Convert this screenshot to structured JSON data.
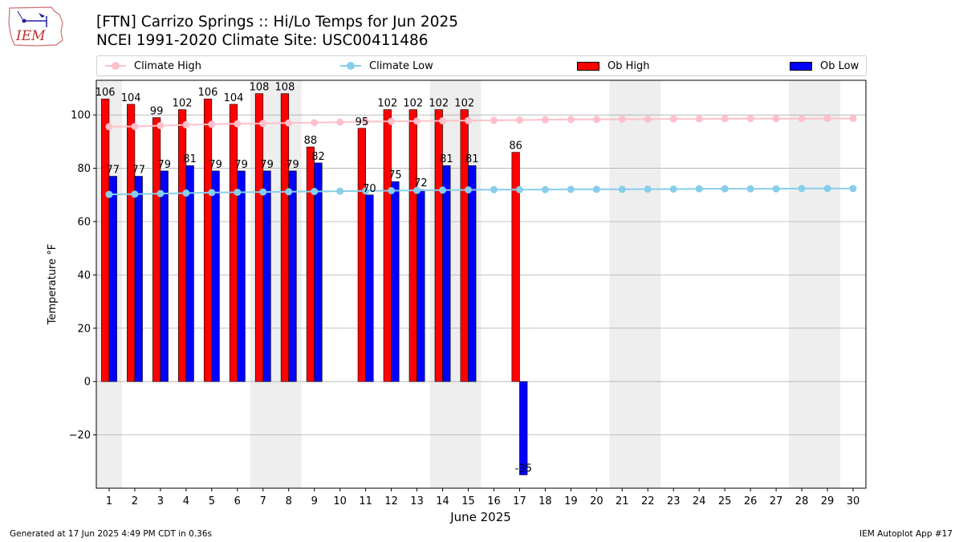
{
  "header": {
    "logo_text": "IEM",
    "title_line1": "[FTN] Carrizo Springs :: Hi/Lo Temps for Jun 2025",
    "title_line2": "NCEI 1991-2020 Climate Site: USC00411486"
  },
  "legend": {
    "items": [
      {
        "label": "Climate High",
        "kind": "line",
        "color": "#ffc0cb"
      },
      {
        "label": "Climate Low",
        "kind": "line",
        "color": "#87ceeb"
      },
      {
        "label": "Ob High",
        "kind": "patch",
        "color": "#ff0000"
      },
      {
        "label": "Ob Low",
        "kind": "patch",
        "color": "#0000ff"
      }
    ]
  },
  "footer": {
    "left": "Generated at 17 Jun 2025 4:49 PM CDT in 0.36s",
    "right": "IEM Autoplot App #17"
  },
  "chart_data": {
    "type": "bar",
    "xlabel": "June 2025",
    "ylabel": "Temperature °F",
    "x": [
      1,
      2,
      3,
      4,
      5,
      6,
      7,
      8,
      9,
      10,
      11,
      12,
      13,
      14,
      15,
      16,
      17,
      18,
      19,
      20,
      21,
      22,
      23,
      24,
      25,
      26,
      27,
      28,
      29,
      30
    ],
    "xlim": [
      0.5,
      30.5
    ],
    "ylim": [
      -40,
      113
    ],
    "yticks": [
      -20,
      0,
      20,
      40,
      60,
      80,
      100
    ],
    "grid": "horizontal",
    "legend_position": "top",
    "weekend_shading_days": [
      1,
      7,
      8,
      14,
      15,
      21,
      22,
      28,
      29
    ],
    "shade_color": "#eeeeee",
    "series": [
      {
        "name": "Ob High",
        "kind": "bar",
        "color": "#ff0000",
        "values": [
          106,
          104,
          99,
          102,
          106,
          104,
          108,
          108,
          88,
          null,
          95,
          102,
          102,
          102,
          102,
          null,
          86,
          null,
          null,
          null,
          null,
          null,
          null,
          null,
          null,
          null,
          null,
          null,
          null,
          null
        ],
        "labels": [
          "106",
          "104",
          "99",
          "102",
          "106",
          "104",
          "108",
          "108",
          "88",
          "",
          "95",
          "102",
          "102",
          "102",
          "102",
          "",
          "86",
          "",
          "",
          "",
          "",
          "",
          "",
          "",
          "",
          "",
          "",
          "",
          "",
          ""
        ]
      },
      {
        "name": "Ob Low",
        "kind": "bar",
        "color": "#0000ff",
        "values": [
          77,
          77,
          79,
          81,
          79,
          79,
          79,
          79,
          82,
          null,
          70,
          75,
          72,
          81,
          81,
          null,
          -35,
          null,
          null,
          null,
          null,
          null,
          null,
          null,
          null,
          null,
          null,
          null,
          null,
          null
        ],
        "labels": [
          "77",
          "77",
          "79",
          "81",
          "79",
          "79",
          "79",
          "79",
          "82",
          "",
          "70",
          "75",
          "72",
          "81",
          "81",
          "",
          "-35",
          "",
          "",
          "",
          "",
          "",
          "",
          "",
          "",
          "",
          "",
          "",
          "",
          ""
        ]
      },
      {
        "name": "Climate High",
        "kind": "line",
        "color": "#ffc0cb",
        "values": [
          95.6,
          95.7,
          96.0,
          96.3,
          96.5,
          96.7,
          96.8,
          97.0,
          97.1,
          97.3,
          97.5,
          97.6,
          97.7,
          97.8,
          97.9,
          98.0,
          98.1,
          98.2,
          98.3,
          98.3,
          98.4,
          98.4,
          98.5,
          98.5,
          98.6,
          98.6,
          98.6,
          98.6,
          98.7,
          98.7
        ]
      },
      {
        "name": "Climate Low",
        "kind": "line",
        "color": "#87ceeb",
        "values": [
          70.2,
          70.3,
          70.5,
          70.7,
          70.9,
          71.0,
          71.1,
          71.2,
          71.3,
          71.4,
          71.5,
          71.6,
          71.7,
          71.8,
          71.9,
          72.0,
          72.0,
          72.0,
          72.1,
          72.1,
          72.1,
          72.2,
          72.2,
          72.3,
          72.3,
          72.3,
          72.3,
          72.4,
          72.4,
          72.4
        ]
      }
    ]
  }
}
